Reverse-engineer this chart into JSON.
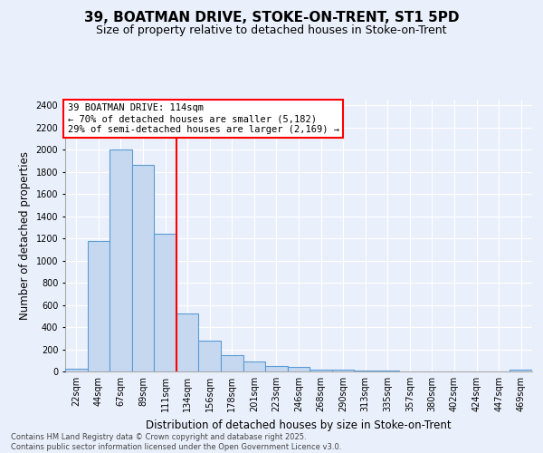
{
  "title1": "39, BOATMAN DRIVE, STOKE-ON-TRENT, ST1 5PD",
  "title2": "Size of property relative to detached houses in Stoke-on-Trent",
  "xlabel": "Distribution of detached houses by size in Stoke-on-Trent",
  "ylabel": "Number of detached properties",
  "categories": [
    "22sqm",
    "44sqm",
    "67sqm",
    "89sqm",
    "111sqm",
    "134sqm",
    "156sqm",
    "178sqm",
    "201sqm",
    "223sqm",
    "246sqm",
    "268sqm",
    "290sqm",
    "313sqm",
    "335sqm",
    "357sqm",
    "380sqm",
    "402sqm",
    "424sqm",
    "447sqm",
    "469sqm"
  ],
  "values": [
    25,
    1175,
    2000,
    1860,
    1245,
    520,
    280,
    150,
    90,
    45,
    40,
    20,
    15,
    8,
    5,
    3,
    2,
    2,
    1,
    1,
    15
  ],
  "bar_color": "#c5d8f0",
  "bar_edge_color": "#5b9bd5",
  "bar_width": 1.0,
  "red_line_x": 4.5,
  "annotation_text": "39 BOATMAN DRIVE: 114sqm\n← 70% of detached houses are smaller (5,182)\n29% of semi-detached houses are larger (2,169) →",
  "annotation_box_color": "white",
  "annotation_box_edge_color": "red",
  "ylim": [
    0,
    2450
  ],
  "yticks": [
    0,
    200,
    400,
    600,
    800,
    1000,
    1200,
    1400,
    1600,
    1800,
    2000,
    2200,
    2400
  ],
  "background_color": "#eaf0fb",
  "grid_color": "white",
  "footer1": "Contains HM Land Registry data © Crown copyright and database right 2025.",
  "footer2": "Contains public sector information licensed under the Open Government Licence v3.0.",
  "title_fontsize": 11,
  "subtitle_fontsize": 9,
  "axis_label_fontsize": 8.5,
  "tick_fontsize": 7,
  "annotation_fontsize": 7.5,
  "footer_fontsize": 6
}
